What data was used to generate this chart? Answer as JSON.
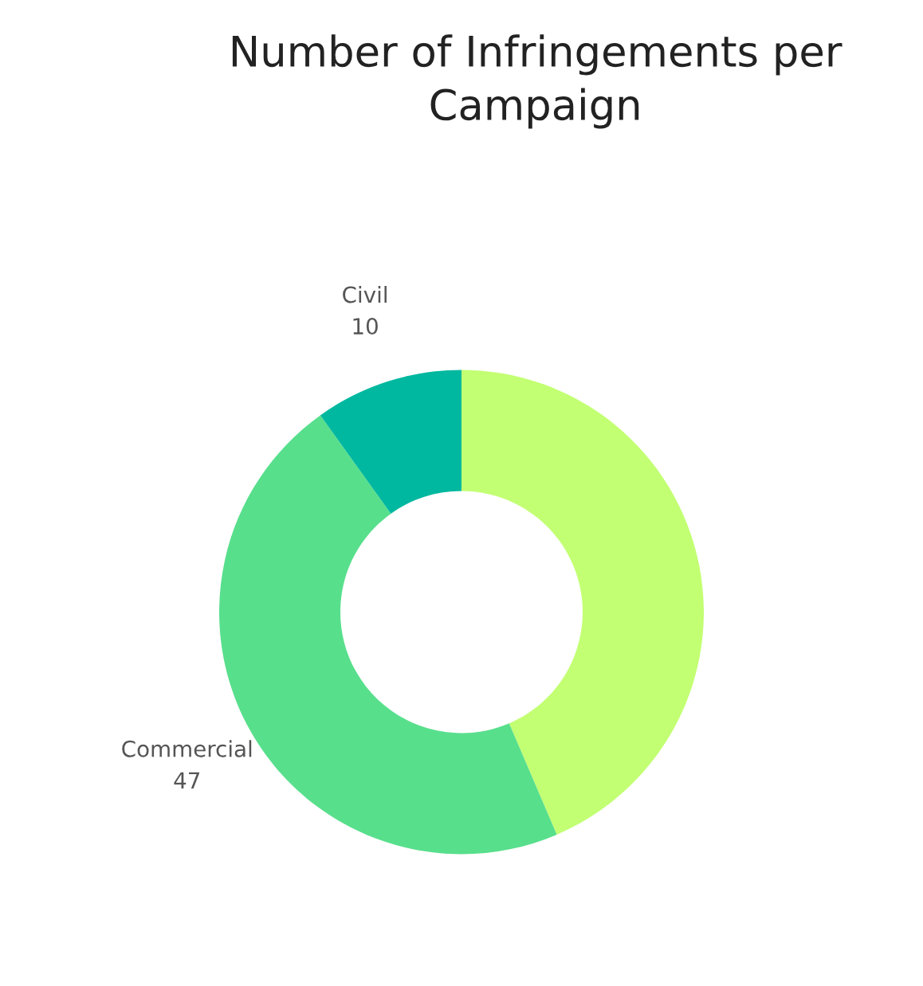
{
  "chart_data": {
    "type": "donut",
    "title": "Number of Infringements per Campaign",
    "categories": [
      null,
      "Commercial",
      "Civil"
    ],
    "values": [
      44,
      47,
      10
    ],
    "colors": [
      "#c2ff73",
      "#58df8c",
      "#00b89f"
    ],
    "value_labels": [
      null,
      "47",
      "10"
    ]
  }
}
